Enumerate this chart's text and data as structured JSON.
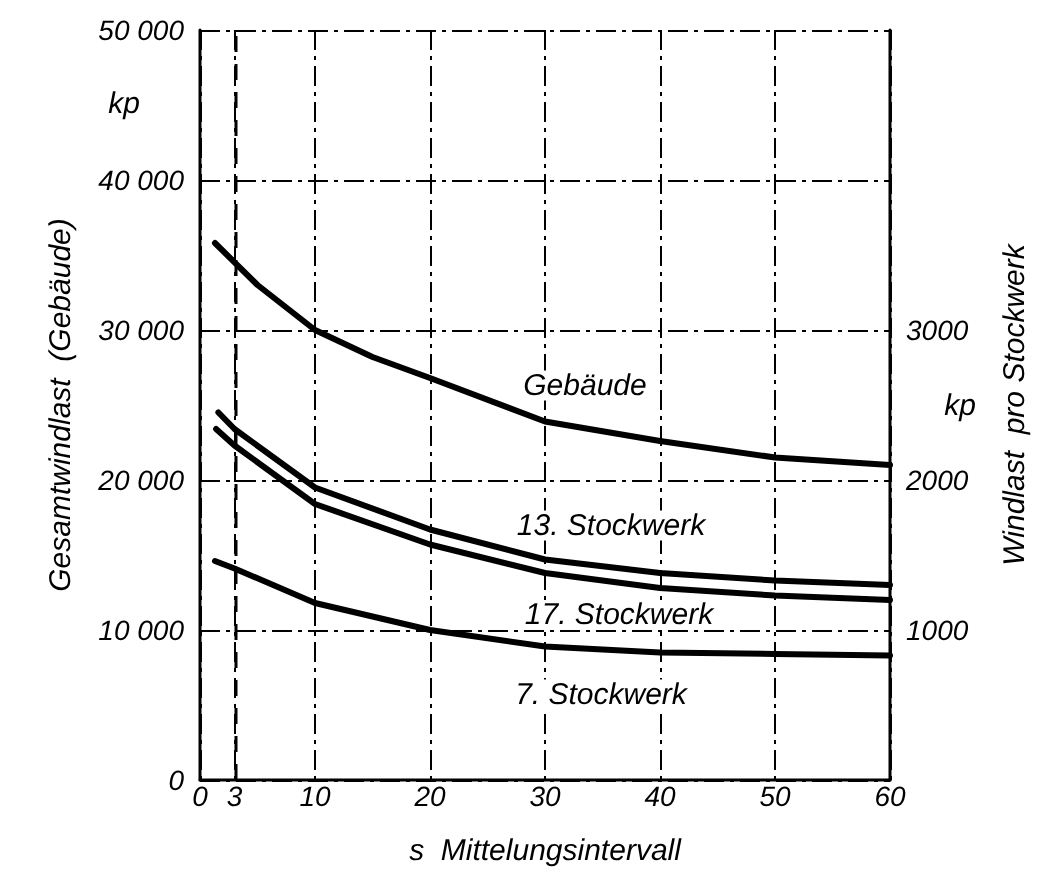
{
  "chart_data": {
    "type": "line",
    "xlabel": "s  Mittelungsintervall",
    "ylabel": "Gesamtwindlast  (Gebäude)",
    "y2label": "Windlast  pro Stockwerk",
    "annotations": [
      "kp",
      "kp"
    ],
    "xlim": [
      0,
      60
    ],
    "xticks": [
      0,
      3,
      10,
      20,
      30,
      40,
      50,
      60
    ],
    "ylim": [
      0,
      50000
    ],
    "yticks": [
      {
        "value": 0,
        "label": "0"
      },
      {
        "value": 10000,
        "label": "10 000"
      },
      {
        "value": 20000,
        "label": "20 000"
      },
      {
        "value": 30000,
        "label": "30 000"
      },
      {
        "value": 40000,
        "label": "40 000"
      },
      {
        "value": 50000,
        "label": "50 000"
      }
    ],
    "y2lim": [
      0,
      5000
    ],
    "y2ticks": [
      1000,
      2000,
      3000
    ],
    "grid": true,
    "marker": "none",
    "line_style": "solid",
    "legend": false,
    "ref_lines": [
      {
        "axis": "x",
        "value": 3,
        "line_style": "dashed",
        "color": "#000000"
      }
    ],
    "series": [
      {
        "name": "Gebäude",
        "color": "#000000",
        "x": [
          1.3,
          5,
          10,
          15,
          20,
          30,
          40,
          50,
          60
        ],
        "values": [
          35800,
          33000,
          30000,
          28200,
          26800,
          23900,
          22600,
          21500,
          21000
        ]
      },
      {
        "name": "13. Stockwerk",
        "color": "#000000",
        "axis": "y2",
        "x": [
          1.6,
          3,
          10,
          20,
          30,
          40,
          50,
          60
        ],
        "values": [
          2450,
          2340,
          1950,
          1670,
          1470,
          1380,
          1330,
          1300
        ]
      },
      {
        "name": "17. Stockwerk",
        "color": "#000000",
        "axis": "y2",
        "x": [
          1.4,
          3,
          10,
          20,
          30,
          40,
          50,
          60
        ],
        "values": [
          2340,
          2230,
          1840,
          1570,
          1380,
          1280,
          1230,
          1200
        ]
      },
      {
        "name": "7. Stockwerk",
        "color": "#000000",
        "axis": "y2",
        "x": [
          1.3,
          3,
          10,
          20,
          30,
          40,
          50,
          60
        ],
        "values": [
          1460,
          1410,
          1180,
          1000,
          890,
          850,
          840,
          830
        ]
      }
    ]
  }
}
